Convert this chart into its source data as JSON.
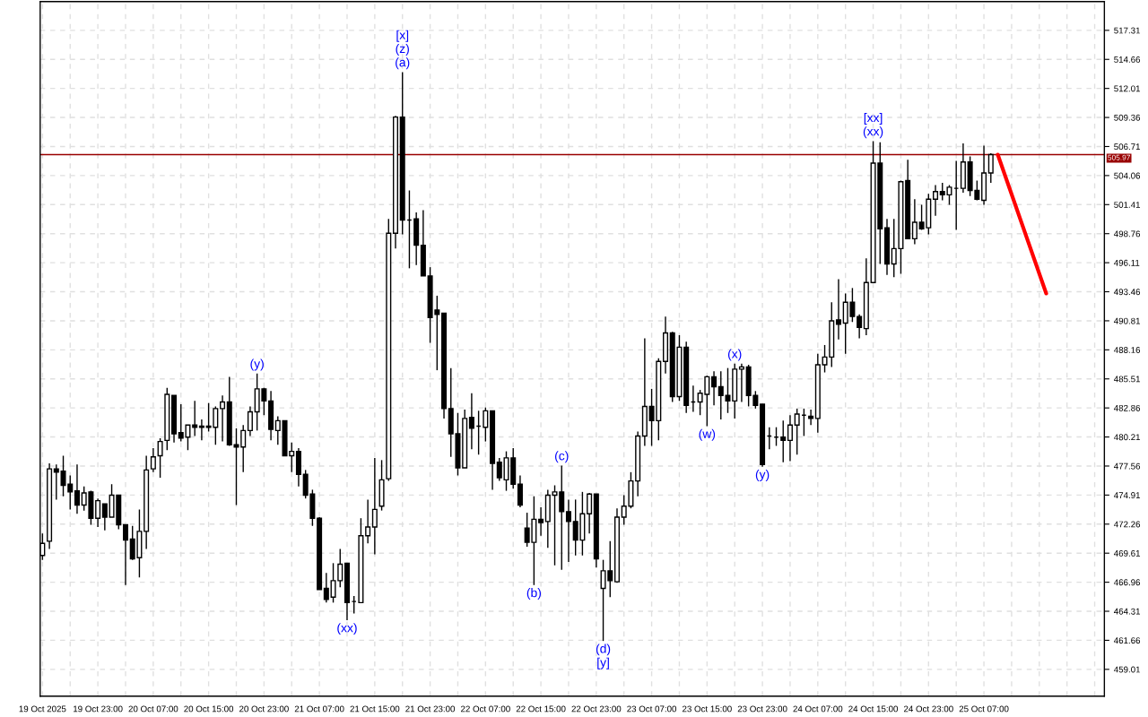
{
  "chart_data": {
    "type": "candlestick",
    "x": [
      "2025-10-19T15:00",
      "2025-10-19T16:00",
      "2025-10-19T17:00",
      "2025-10-19T18:00",
      "2025-10-19T19:00",
      "2025-10-19T20:00",
      "2025-10-19T21:00",
      "2025-10-19T22:00",
      "2025-10-19T23:00",
      "2025-10-20T00:00",
      "2025-10-20T01:00",
      "2025-10-20T02:00",
      "2025-10-20T03:00",
      "2025-10-20T04:00",
      "2025-10-20T05:00",
      "2025-10-20T06:00",
      "2025-10-20T07:00",
      "2025-10-20T08:00",
      "2025-10-20T09:00",
      "2025-10-20T10:00",
      "2025-10-20T11:00",
      "2025-10-20T12:00",
      "2025-10-20T13:00",
      "2025-10-20T14:00",
      "2025-10-20T15:00",
      "2025-10-20T16:00",
      "2025-10-20T17:00",
      "2025-10-20T18:00",
      "2025-10-20T19:00",
      "2025-10-20T20:00",
      "2025-10-20T21:00",
      "2025-10-20T22:00",
      "2025-10-20T23:00",
      "2025-10-21T00:00",
      "2025-10-21T01:00",
      "2025-10-21T02:00",
      "2025-10-21T03:00",
      "2025-10-21T04:00",
      "2025-10-21T05:00",
      "2025-10-21T06:00",
      "2025-10-21T07:00",
      "2025-10-21T08:00",
      "2025-10-21T09:00",
      "2025-10-21T10:00",
      "2025-10-21T11:00",
      "2025-10-21T12:00",
      "2025-10-21T13:00",
      "2025-10-21T14:00",
      "2025-10-21T15:00",
      "2025-10-21T16:00",
      "2025-10-21T17:00",
      "2025-10-21T18:00",
      "2025-10-21T19:00",
      "2025-10-21T20:00",
      "2025-10-21T21:00",
      "2025-10-21T22:00",
      "2025-10-21T23:00",
      "2025-10-22T00:00",
      "2025-10-22T01:00",
      "2025-10-22T02:00",
      "2025-10-22T03:00",
      "2025-10-22T04:00",
      "2025-10-22T05:00",
      "2025-10-22T06:00",
      "2025-10-22T07:00",
      "2025-10-22T08:00",
      "2025-10-22T09:00",
      "2025-10-22T10:00",
      "2025-10-22T11:00",
      "2025-10-22T12:00",
      "2025-10-22T13:00",
      "2025-10-22T14:00",
      "2025-10-22T15:00",
      "2025-10-22T16:00",
      "2025-10-22T17:00",
      "2025-10-22T18:00",
      "2025-10-22T19:00",
      "2025-10-22T20:00",
      "2025-10-22T21:00",
      "2025-10-22T22:00",
      "2025-10-22T23:00",
      "2025-10-23T00:00",
      "2025-10-23T01:00",
      "2025-10-23T02:00",
      "2025-10-23T03:00",
      "2025-10-23T04:00",
      "2025-10-23T05:00",
      "2025-10-23T06:00",
      "2025-10-23T07:00",
      "2025-10-23T08:00",
      "2025-10-23T09:00",
      "2025-10-23T10:00",
      "2025-10-23T11:00",
      "2025-10-23T12:00",
      "2025-10-23T13:00",
      "2025-10-23T14:00",
      "2025-10-23T15:00",
      "2025-10-23T16:00",
      "2025-10-23T17:00",
      "2025-10-23T18:00",
      "2025-10-23T19:00",
      "2025-10-23T20:00",
      "2025-10-23T21:00",
      "2025-10-23T22:00",
      "2025-10-23T23:00",
      "2025-10-24T00:00",
      "2025-10-24T01:00",
      "2025-10-24T02:00",
      "2025-10-24T03:00",
      "2025-10-24T04:00",
      "2025-10-24T05:00",
      "2025-10-24T06:00",
      "2025-10-24T07:00",
      "2025-10-24T08:00",
      "2025-10-24T09:00",
      "2025-10-24T10:00",
      "2025-10-24T11:00",
      "2025-10-24T12:00",
      "2025-10-24T13:00",
      "2025-10-24T14:00",
      "2025-10-24T15:00",
      "2025-10-24T16:00",
      "2025-10-24T17:00",
      "2025-10-24T18:00",
      "2025-10-24T19:00",
      "2025-10-24T20:00",
      "2025-10-24T21:00",
      "2025-10-24T22:00",
      "2025-10-24T23:00",
      "2025-10-25T00:00",
      "2025-10-25T01:00",
      "2025-10-25T02:00",
      "2025-10-25T03:00",
      "2025-10-25T04:00",
      "2025-10-25T05:00",
      "2025-10-25T06:00",
      "2025-10-25T07:00",
      "2025-10-25T08:00"
    ],
    "ohlc": [
      [
        469.4,
        471.4,
        469.0,
        470.5
      ],
      [
        470.7,
        477.8,
        470.0,
        477.3
      ],
      [
        477.3,
        477.7,
        474.5,
        477.0
      ],
      [
        477.1,
        478.5,
        474.8,
        475.8
      ],
      [
        475.9,
        476.7,
        473.6,
        475.2
      ],
      [
        475.3,
        477.7,
        473.2,
        474.0
      ],
      [
        474.0,
        475.7,
        473.5,
        475.1
      ],
      [
        475.2,
        475.3,
        472.2,
        472.8
      ],
      [
        472.8,
        474.6,
        472.0,
        474.4
      ],
      [
        474.1,
        474.1,
        471.7,
        472.9
      ],
      [
        472.9,
        475.9,
        472.9,
        474.9
      ],
      [
        474.9,
        474.9,
        471.8,
        472.2
      ],
      [
        472.2,
        472.2,
        466.7,
        470.8
      ],
      [
        470.9,
        472.1,
        469.0,
        469.1
      ],
      [
        469.2,
        473.6,
        467.4,
        471.6
      ],
      [
        471.6,
        478.5,
        470.0,
        477.2
      ],
      [
        477.3,
        479.2,
        477.0,
        478.4
      ],
      [
        478.5,
        480.1,
        476.5,
        479.8
      ],
      [
        479.9,
        484.7,
        479.0,
        484.1
      ],
      [
        484.0,
        484.0,
        479.7,
        480.5
      ],
      [
        480.6,
        483.2,
        479.8,
        480.1
      ],
      [
        480.2,
        481.3,
        479.0,
        481.3
      ],
      [
        481.3,
        483.5,
        480.3,
        481.1
      ],
      [
        481.2,
        481.8,
        479.9,
        481.1
      ],
      [
        481.2,
        483.3,
        480.7,
        481.1
      ],
      [
        481.1,
        483.0,
        479.5,
        482.8
      ],
      [
        482.8,
        484.0,
        479.8,
        483.4
      ],
      [
        483.4,
        485.7,
        479.4,
        479.5
      ],
      [
        479.5,
        481.0,
        474.0,
        479.3
      ],
      [
        479.3,
        481.3,
        477.0,
        480.8
      ],
      [
        480.8,
        483.0,
        480.3,
        482.5
      ],
      [
        482.5,
        486.0,
        480.8,
        484.6
      ],
      [
        484.6,
        484.7,
        482.2,
        483.5
      ],
      [
        483.5,
        484.4,
        479.9,
        480.9
      ],
      [
        480.8,
        482.1,
        479.5,
        481.7
      ],
      [
        481.7,
        481.7,
        478.5,
        478.5
      ],
      [
        478.5,
        479.7,
        477.0,
        478.9
      ],
      [
        478.9,
        479.2,
        475.7,
        476.8
      ],
      [
        476.8,
        477.2,
        474.6,
        474.9
      ],
      [
        475.0,
        475.4,
        472.1,
        472.8
      ],
      [
        472.8,
        472.9,
        466.3,
        466.3
      ],
      [
        466.4,
        467.8,
        465.1,
        465.4
      ],
      [
        465.6,
        468.7,
        465.1,
        467.1
      ],
      [
        467.1,
        470.0,
        466.5,
        468.6
      ],
      [
        468.7,
        468.7,
        463.5,
        465.1
      ],
      [
        465.2,
        465.7,
        464.1,
        465.2
      ],
      [
        465.1,
        472.8,
        465.1,
        471.2
      ],
      [
        471.2,
        474.5,
        470.5,
        472.0
      ],
      [
        472.0,
        478.3,
        469.5,
        473.6
      ],
      [
        473.9,
        478.1,
        473.5,
        476.3
      ],
      [
        476.4,
        500.1,
        476.2,
        498.8
      ],
      [
        498.8,
        509.5,
        497.4,
        509.4
      ],
      [
        509.4,
        513.5,
        498.7,
        500.0
      ],
      [
        500.0,
        502.7,
        495.6,
        500.0
      ],
      [
        500.1,
        500.7,
        495.9,
        497.7
      ],
      [
        497.7,
        500.9,
        494.9,
        494.9
      ],
      [
        494.9,
        495.7,
        488.8,
        491.1
      ],
      [
        491.8,
        493.1,
        486.3,
        491.4
      ],
      [
        491.5,
        491.5,
        481.9,
        482.8
      ],
      [
        482.8,
        486.5,
        478.4,
        480.5
      ],
      [
        480.5,
        482.4,
        476.7,
        477.4
      ],
      [
        477.4,
        482.7,
        477.4,
        481.9
      ],
      [
        482.0,
        484.2,
        479.1,
        481.0
      ],
      [
        481.2,
        482.6,
        478.6,
        481.2
      ],
      [
        481.1,
        482.9,
        479.8,
        482.6
      ],
      [
        482.6,
        482.6,
        475.4,
        477.8
      ],
      [
        477.9,
        478.3,
        476.2,
        476.5
      ],
      [
        476.3,
        478.9,
        475.3,
        478.3
      ],
      [
        478.3,
        479.2,
        475.5,
        475.9
      ],
      [
        475.9,
        476.7,
        473.8,
        474.0
      ],
      [
        471.9,
        473.3,
        470.2,
        470.6
      ],
      [
        470.6,
        474.8,
        466.7,
        472.7
      ],
      [
        472.7,
        473.8,
        471.2,
        472.4
      ],
      [
        472.5,
        475.4,
        470.1,
        474.9
      ],
      [
        474.9,
        475.8,
        468.5,
        475.2
      ],
      [
        475.2,
        477.6,
        468.1,
        473.4
      ],
      [
        473.4,
        474.5,
        468.8,
        472.5
      ],
      [
        472.5,
        474.5,
        469.4,
        470.8
      ],
      [
        470.8,
        475.2,
        469.4,
        473.2
      ],
      [
        473.2,
        475.1,
        471.4,
        475.0
      ],
      [
        475.0,
        475.0,
        468.3,
        469.1
      ],
      [
        466.4,
        469.0,
        461.6,
        468.0
      ],
      [
        468.0,
        470.7,
        465.6,
        467.1
      ],
      [
        467.0,
        473.7,
        466.9,
        472.9
      ],
      [
        472.9,
        474.9,
        472.2,
        473.9
      ],
      [
        473.9,
        477.0,
        473.7,
        476.2
      ],
      [
        476.2,
        480.7,
        474.8,
        480.3
      ],
      [
        480.3,
        489.2,
        479.4,
        483.0
      ],
      [
        483.0,
        484.6,
        479.4,
        481.7
      ],
      [
        481.7,
        487.4,
        479.9,
        487.1
      ],
      [
        487.1,
        491.2,
        486.0,
        489.7
      ],
      [
        489.7,
        489.8,
        483.4,
        483.9
      ],
      [
        483.9,
        489.5,
        483.5,
        488.4
      ],
      [
        488.4,
        488.9,
        482.4,
        483.1
      ],
      [
        483.4,
        484.9,
        482.5,
        483.4
      ],
      [
        483.4,
        484.5,
        482.2,
        484.2
      ],
      [
        484.1,
        485.8,
        481.2,
        485.7
      ],
      [
        485.7,
        486.2,
        483.1,
        484.8
      ],
      [
        484.8,
        486.2,
        481.8,
        484.0
      ],
      [
        484.0,
        486.5,
        482.4,
        483.5
      ],
      [
        483.5,
        486.9,
        481.9,
        486.4
      ],
      [
        486.4,
        486.9,
        483.4,
        486.6
      ],
      [
        486.6,
        486.8,
        483.0,
        484.0
      ],
      [
        484.0,
        484.4,
        482.8,
        483.1
      ],
      [
        483.2,
        483.2,
        477.5,
        477.7
      ],
      [
        480.3,
        481.1,
        479.1,
        480.3
      ],
      [
        480.2,
        481.1,
        479.4,
        480.2
      ],
      [
        480.2,
        481.7,
        477.9,
        479.9
      ],
      [
        479.9,
        482.2,
        478.0,
        481.3
      ],
      [
        481.3,
        482.8,
        478.6,
        482.3
      ],
      [
        482.2,
        482.8,
        480.3,
        482.2
      ],
      [
        482.1,
        482.7,
        481.3,
        481.9
      ],
      [
        481.9,
        487.8,
        480.6,
        486.8
      ],
      [
        486.8,
        488.6,
        486.1,
        487.5
      ],
      [
        487.5,
        492.5,
        486.6,
        490.8
      ],
      [
        490.9,
        494.6,
        489.1,
        490.5
      ],
      [
        490.6,
        493.3,
        487.8,
        492.5
      ],
      [
        492.5,
        493.8,
        490.7,
        491.2
      ],
      [
        491.2,
        491.4,
        489.2,
        490.2
      ],
      [
        490.1,
        496.5,
        489.5,
        494.3
      ],
      [
        494.3,
        507.2,
        494.3,
        505.2
      ],
      [
        505.2,
        507.1,
        496.0,
        499.2
      ],
      [
        499.3,
        500.1,
        495.0,
        496.0
      ],
      [
        496.0,
        500.1,
        494.8,
        497.4
      ],
      [
        497.4,
        503.6,
        495.1,
        503.5
      ],
      [
        503.6,
        505.5,
        498.3,
        498.3
      ],
      [
        498.3,
        501.9,
        497.8,
        499.8
      ],
      [
        499.8,
        501.4,
        499.1,
        499.2
      ],
      [
        499.3,
        502.4,
        498.7,
        501.9
      ],
      [
        501.9,
        503.2,
        500.4,
        502.6
      ],
      [
        502.6,
        503.4,
        501.8,
        502.3
      ],
      [
        502.3,
        503.2,
        501.4,
        503.0
      ],
      [
        502.9,
        505.4,
        499.1,
        502.9
      ],
      [
        502.9,
        507.0,
        502.5,
        505.3
      ],
      [
        505.3,
        505.8,
        502.2,
        502.7
      ],
      [
        502.7,
        503.6,
        501.8,
        501.9
      ],
      [
        501.8,
        506.8,
        501.4,
        504.3
      ],
      [
        504.3,
        506.1,
        503.4,
        505.97
      ]
    ],
    "series": [
      {
        "type": "line",
        "x": [
          "2025-10-25T09:00",
          "2025-10-25T16:00"
        ],
        "values": [
          505.97,
          493.3
        ],
        "color": "#ff0000"
      }
    ],
    "xlim": [
      "2025-10-19T14:40",
      "2025-10-26T00:24"
    ],
    "ylim": [
      456.56,
      519.93
    ],
    "xticks": [
      {
        "value": "2025-10-19T15:00",
        "label": "19 Oct 2025"
      },
      {
        "value": "2025-10-19T19:00",
        "label": null
      },
      {
        "value": "2025-10-19T23:00",
        "label": "19 Oct 23:00"
      },
      {
        "value": "2025-10-20T03:00",
        "label": null
      },
      {
        "value": "2025-10-20T07:00",
        "label": "20 Oct 07:00"
      },
      {
        "value": "2025-10-20T11:00",
        "label": null
      },
      {
        "value": "2025-10-20T15:00",
        "label": "20 Oct 15:00"
      },
      {
        "value": "2025-10-20T19:00",
        "label": null
      },
      {
        "value": "2025-10-20T23:00",
        "label": "20 Oct 23:00"
      },
      {
        "value": "2025-10-21T03:00",
        "label": null
      },
      {
        "value": "2025-10-21T07:00",
        "label": "21 Oct 07:00"
      },
      {
        "value": "2025-10-21T11:00",
        "label": null
      },
      {
        "value": "2025-10-21T15:00",
        "label": "21 Oct 15:00"
      },
      {
        "value": "2025-10-21T19:00",
        "label": null
      },
      {
        "value": "2025-10-21T23:00",
        "label": "21 Oct 23:00"
      },
      {
        "value": "2025-10-22T03:00",
        "label": null
      },
      {
        "value": "2025-10-22T07:00",
        "label": "22 Oct 07:00"
      },
      {
        "value": "2025-10-22T11:00",
        "label": null
      },
      {
        "value": "2025-10-22T15:00",
        "label": "22 Oct 15:00"
      },
      {
        "value": "2025-10-22T19:00",
        "label": null
      },
      {
        "value": "2025-10-22T23:00",
        "label": "22 Oct 23:00"
      },
      {
        "value": "2025-10-23T03:00",
        "label": null
      },
      {
        "value": "2025-10-23T07:00",
        "label": "23 Oct 07:00"
      },
      {
        "value": "2025-10-23T11:00",
        "label": null
      },
      {
        "value": "2025-10-23T15:00",
        "label": "23 Oct 15:00"
      },
      {
        "value": "2025-10-23T19:00",
        "label": null
      },
      {
        "value": "2025-10-23T23:00",
        "label": "23 Oct 23:00"
      },
      {
        "value": "2025-10-24T03:00",
        "label": null
      },
      {
        "value": "2025-10-24T07:00",
        "label": "24 Oct 07:00"
      },
      {
        "value": "2025-10-24T11:00",
        "label": null
      },
      {
        "value": "2025-10-24T15:00",
        "label": "24 Oct 15:00"
      },
      {
        "value": "2025-10-24T19:00",
        "label": null
      },
      {
        "value": "2025-10-24T23:00",
        "label": "24 Oct 23:00"
      },
      {
        "value": "2025-10-25T03:00",
        "label": null
      },
      {
        "value": "2025-10-25T07:00",
        "label": "25 Oct 07:00"
      },
      {
        "value": "2025-10-25T11:00",
        "label": null
      },
      {
        "value": "2025-10-25T15:00",
        "label": null
      },
      {
        "value": "2025-10-25T19:00",
        "label": null
      },
      {
        "value": "2025-10-25T23:00",
        "label": null
      }
    ],
    "yticks": [
      459.01,
      461.66,
      464.31,
      466.96,
      469.61,
      472.26,
      474.91,
      477.56,
      480.21,
      482.86,
      485.51,
      488.16,
      490.81,
      493.46,
      496.11,
      498.76,
      501.41,
      504.06,
      506.71,
      509.36,
      512.01,
      514.66,
      517.31
    ],
    "grid": true,
    "ref_lines": [
      {
        "axis": "y",
        "value": 505.97,
        "label": "505.97",
        "color": "#990000"
      }
    ],
    "annotations": [
      {
        "text": "[x]",
        "x": "2025-10-21T19:00",
        "y": 513.5
      },
      {
        "text": "(z)",
        "x": "2025-10-21T19:00",
        "y": 513.5
      },
      {
        "text": "(a)",
        "x": "2025-10-21T19:00",
        "y": 513.5
      },
      {
        "text": "(y)",
        "x": "2025-10-20T22:00",
        "y": 486.0
      },
      {
        "text": "(xx)",
        "x": "2025-10-21T11:00",
        "y": 463.5
      },
      {
        "text": "(b)",
        "x": "2025-10-22T14:00",
        "y": 466.7
      },
      {
        "text": "(c)",
        "x": "2025-10-22T18:00",
        "y": 477.6
      },
      {
        "text": "(d)",
        "x": "2025-10-23T00:00",
        "y": 461.6
      },
      {
        "text": "[y]",
        "x": "2025-10-23T00:00",
        "y": 461.6
      },
      {
        "text": "(w)",
        "x": "2025-10-23T15:00",
        "y": 481.2
      },
      {
        "text": "(x)",
        "x": "2025-10-23T19:00",
        "y": 486.9
      },
      {
        "text": "(y)",
        "x": "2025-10-23T23:00",
        "y": 477.5
      },
      {
        "text": "[xx]",
        "x": "2025-10-24T15:00",
        "y": 507.2
      },
      {
        "text": "(xx)",
        "x": "2025-10-24T15:00",
        "y": 507.2
      }
    ]
  }
}
